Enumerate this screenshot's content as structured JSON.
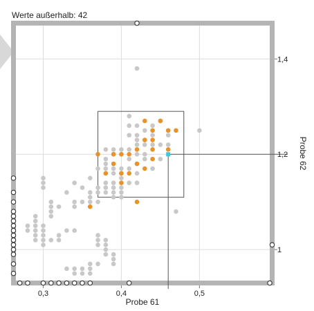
{
  "header": {
    "outside_text": "Werte außerhalb: 42"
  },
  "chart_data": {
    "type": "scatter",
    "xlabel": "Probe 61",
    "ylabel": "Probe 62",
    "xlim": [
      0.265,
      0.59
    ],
    "ylim": [
      0.935,
      1.47
    ],
    "x_ticks": [
      {
        "value": 0.3,
        "label": "0,3"
      },
      {
        "value": 0.4,
        "label": "0,4"
      },
      {
        "value": 0.5,
        "label": "0,5"
      }
    ],
    "y_ticks": [
      {
        "value": 1.0,
        "label": "1"
      },
      {
        "value": 1.2,
        "label": "1,2"
      },
      {
        "value": 1.4,
        "label": "1,4"
      }
    ],
    "grid": true,
    "selection_box": {
      "x": [
        0.37,
        0.48
      ],
      "y": [
        1.11,
        1.29
      ]
    },
    "crosshair": {
      "x": 0.46,
      "y": 1.2
    },
    "colors": {
      "background_points": "#c8c8c8",
      "selected_points": "#e8922a",
      "cursor_point": "#3cc8e0",
      "frame": "#b4b4b4"
    },
    "series": [
      {
        "color": "#c8c8c8",
        "points": [
          [
            0.28,
            1.05
          ],
          [
            0.28,
            1.04
          ],
          [
            0.29,
            1.07
          ],
          [
            0.29,
            1.06
          ],
          [
            0.29,
            1.05
          ],
          [
            0.29,
            1.04
          ],
          [
            0.29,
            1.03
          ],
          [
            0.29,
            1.02
          ],
          [
            0.3,
            1.15
          ],
          [
            0.3,
            1.14
          ],
          [
            0.3,
            1.13
          ],
          [
            0.3,
            1.05
          ],
          [
            0.3,
            1.04
          ],
          [
            0.3,
            1.03
          ],
          [
            0.3,
            1.02
          ],
          [
            0.3,
            1.01
          ],
          [
            0.31,
            1.1
          ],
          [
            0.31,
            1.09
          ],
          [
            0.31,
            1.08
          ],
          [
            0.31,
            1.07
          ],
          [
            0.31,
            1.02
          ],
          [
            0.32,
            1.09
          ],
          [
            0.32,
            1.03
          ],
          [
            0.32,
            1.02
          ],
          [
            0.33,
            1.12
          ],
          [
            0.33,
            1.04
          ],
          [
            0.33,
            0.96
          ],
          [
            0.34,
            1.14
          ],
          [
            0.34,
            1.1
          ],
          [
            0.34,
            1.09
          ],
          [
            0.34,
            1.04
          ],
          [
            0.34,
            0.96
          ],
          [
            0.34,
            0.95
          ],
          [
            0.35,
            1.13
          ],
          [
            0.35,
            1.1
          ],
          [
            0.35,
            0.96
          ],
          [
            0.35,
            0.95
          ],
          [
            0.36,
            1.15
          ],
          [
            0.36,
            1.12
          ],
          [
            0.36,
            1.11
          ],
          [
            0.36,
            1.1
          ],
          [
            0.36,
            1.09
          ],
          [
            0.36,
            0.97
          ],
          [
            0.36,
            0.96
          ],
          [
            0.36,
            0.95
          ],
          [
            0.37,
            1.17
          ],
          [
            0.37,
            1.13
          ],
          [
            0.37,
            1.12
          ],
          [
            0.37,
            1.1
          ],
          [
            0.37,
            1.03
          ],
          [
            0.37,
            1.02
          ],
          [
            0.37,
            1.01
          ],
          [
            0.37,
            0.97
          ],
          [
            0.38,
            1.21
          ],
          [
            0.38,
            1.19
          ],
          [
            0.38,
            1.18
          ],
          [
            0.38,
            1.17
          ],
          [
            0.38,
            1.16
          ],
          [
            0.38,
            1.14
          ],
          [
            0.38,
            1.13
          ],
          [
            0.38,
            1.12
          ],
          [
            0.38,
            1.02
          ],
          [
            0.38,
            1.01
          ],
          [
            0.38,
            1.0
          ],
          [
            0.38,
            0.99
          ],
          [
            0.39,
            1.21
          ],
          [
            0.39,
            1.2
          ],
          [
            0.39,
            1.17
          ],
          [
            0.39,
            1.16
          ],
          [
            0.39,
            1.14
          ],
          [
            0.39,
            1.13
          ],
          [
            0.39,
            1.12
          ],
          [
            0.39,
            1.11
          ],
          [
            0.39,
            0.99
          ],
          [
            0.39,
            0.98
          ],
          [
            0.39,
            0.97
          ],
          [
            0.4,
            1.21
          ],
          [
            0.4,
            1.2
          ],
          [
            0.4,
            1.17
          ],
          [
            0.4,
            1.16
          ],
          [
            0.4,
            1.15
          ],
          [
            0.4,
            1.13
          ],
          [
            0.4,
            1.12
          ],
          [
            0.4,
            1.11
          ],
          [
            0.41,
            1.28
          ],
          [
            0.41,
            1.26
          ],
          [
            0.41,
            1.24
          ],
          [
            0.41,
            1.21
          ],
          [
            0.41,
            1.19
          ],
          [
            0.41,
            1.17
          ],
          [
            0.41,
            1.14
          ],
          [
            0.42,
            1.38
          ],
          [
            0.42,
            1.26
          ],
          [
            0.42,
            1.24
          ],
          [
            0.42,
            1.23
          ],
          [
            0.42,
            1.22
          ],
          [
            0.42,
            1.2
          ],
          [
            0.42,
            1.18
          ],
          [
            0.42,
            1.16
          ],
          [
            0.42,
            1.14
          ],
          [
            0.43,
            1.25
          ],
          [
            0.43,
            1.23
          ],
          [
            0.43,
            1.22
          ],
          [
            0.43,
            1.2
          ],
          [
            0.43,
            1.19
          ],
          [
            0.44,
            1.26
          ],
          [
            0.44,
            1.24
          ],
          [
            0.44,
            1.22
          ],
          [
            0.44,
            1.17
          ],
          [
            0.45,
            1.27
          ],
          [
            0.45,
            1.22
          ],
          [
            0.45,
            1.19
          ],
          [
            0.46,
            1.24
          ],
          [
            0.46,
            1.22
          ],
          [
            0.47,
            1.08
          ],
          [
            0.5,
            1.25
          ]
        ]
      },
      {
        "color": "#e8922a",
        "points": [
          [
            0.36,
            1.09
          ],
          [
            0.37,
            1.2
          ],
          [
            0.38,
            1.16
          ],
          [
            0.39,
            1.2
          ],
          [
            0.39,
            1.18
          ],
          [
            0.4,
            1.2
          ],
          [
            0.4,
            1.16
          ],
          [
            0.4,
            1.14
          ],
          [
            0.41,
            1.2
          ],
          [
            0.41,
            1.16
          ],
          [
            0.42,
            1.21
          ],
          [
            0.42,
            1.18
          ],
          [
            0.42,
            1.1
          ],
          [
            0.43,
            1.27
          ],
          [
            0.43,
            1.23
          ],
          [
            0.43,
            1.17
          ],
          [
            0.44,
            1.25
          ],
          [
            0.44,
            1.23
          ],
          [
            0.44,
            1.21
          ],
          [
            0.44,
            1.19
          ],
          [
            0.45,
            1.27
          ],
          [
            0.46,
            1.25
          ],
          [
            0.46,
            1.21
          ],
          [
            0.47,
            1.25
          ]
        ]
      },
      {
        "color": "#3cc8e0",
        "points": [
          [
            0.46,
            1.2
          ]
        ]
      }
    ],
    "outside_markers": {
      "top": [
        0.42
      ],
      "bottom": [
        0.27,
        0.28,
        0.3,
        0.31,
        0.32,
        0.33,
        0.34,
        0.35,
        0.36,
        0.41,
        0.59
      ],
      "left": [
        0.95,
        0.97,
        0.99,
        1.0,
        1.01,
        1.02,
        1.03,
        1.04,
        1.05,
        1.06,
        1.07,
        1.08,
        1.1,
        1.12,
        1.15
      ],
      "right": [
        1.01
      ]
    }
  }
}
